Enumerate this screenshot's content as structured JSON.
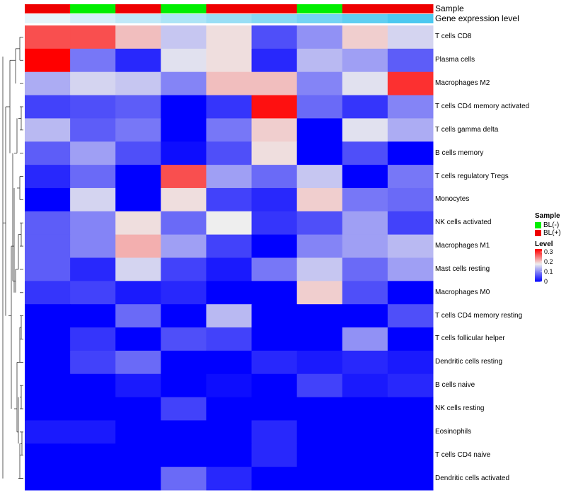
{
  "chart_data": {
    "type": "heatmap",
    "annotations": {
      "sample_title": "Sample",
      "expression_title": "Gene expression level",
      "sample": [
        "BL(+)",
        "BL(-)",
        "BL(+)",
        "BL(-)",
        "BL(+)",
        "BL(+)",
        "BL(-)",
        "BL(+)",
        "BL(+)"
      ],
      "expression_level": [
        0.02,
        0.04,
        0.06,
        0.08,
        0.1,
        0.12,
        0.14,
        0.16,
        0.18
      ]
    },
    "rows": [
      "T cells CD8",
      "Plasma cells",
      "Macrophages M2",
      "T cells CD4 memory activated",
      "T cells gamma delta",
      "B cells memory",
      "T cells regulatory  Tregs",
      "Monocytes",
      "NK cells activated",
      "Macrophages M1",
      "Mast cells resting",
      "Macrophages M0",
      "T cells CD4 memory resting",
      "T cells follicular helper",
      "Dendritic cells resting",
      "B cells naive",
      "NK cells resting",
      "Eosinophils",
      "T cells CD4 naive",
      "Dendritic cells activated"
    ],
    "values": [
      [
        0.28,
        0.28,
        0.21,
        0.15,
        0.19,
        0.06,
        0.11,
        0.2,
        0.16
      ],
      [
        0.33,
        0.09,
        0.03,
        0.17,
        0.19,
        0.03,
        0.14,
        0.12,
        0.07
      ],
      [
        0.13,
        0.16,
        0.15,
        0.1,
        0.21,
        0.21,
        0.1,
        0.17,
        0.3
      ],
      [
        0.05,
        0.06,
        0.07,
        0.0,
        0.04,
        0.32,
        0.08,
        0.04,
        0.1
      ],
      [
        0.14,
        0.07,
        0.09,
        0.0,
        0.09,
        0.2,
        0.0,
        0.17,
        0.13
      ],
      [
        0.07,
        0.12,
        0.06,
        0.01,
        0.06,
        0.19,
        0.0,
        0.06,
        0.0
      ],
      [
        0.03,
        0.08,
        0.0,
        0.28,
        0.12,
        0.08,
        0.15,
        0.0,
        0.09
      ],
      [
        0.0,
        0.16,
        0.0,
        0.19,
        0.05,
        0.03,
        0.2,
        0.09,
        0.08
      ],
      [
        0.07,
        0.1,
        0.19,
        0.08,
        0.18,
        0.04,
        0.06,
        0.12,
        0.05
      ],
      [
        0.07,
        0.1,
        0.22,
        0.12,
        0.05,
        0.0,
        0.1,
        0.12,
        0.14
      ],
      [
        0.07,
        0.03,
        0.16,
        0.05,
        0.02,
        0.09,
        0.15,
        0.08,
        0.12
      ],
      [
        0.04,
        0.05,
        0.02,
        0.03,
        0.0,
        0.0,
        0.2,
        0.06,
        0.0
      ],
      [
        0.0,
        0.0,
        0.08,
        0.0,
        0.14,
        0.0,
        0.0,
        0.0,
        0.06
      ],
      [
        0.0,
        0.04,
        0.0,
        0.06,
        0.05,
        0.0,
        0.0,
        0.11,
        0.0
      ],
      [
        0.0,
        0.05,
        0.08,
        0.0,
        0.0,
        0.03,
        0.02,
        0.03,
        0.02
      ],
      [
        0.0,
        0.0,
        0.02,
        0.0,
        0.01,
        0.0,
        0.05,
        0.02,
        0.03
      ],
      [
        0.0,
        0.0,
        0.0,
        0.05,
        0.0,
        0.0,
        0.0,
        0.0,
        0.0
      ],
      [
        0.02,
        0.02,
        0.0,
        0.0,
        0.0,
        0.03,
        0.0,
        0.0,
        0.0
      ],
      [
        0.0,
        0.0,
        0.0,
        0.0,
        0.0,
        0.03,
        0.0,
        0.0,
        0.0
      ],
      [
        0.0,
        0.0,
        0.0,
        0.08,
        0.03,
        0.0,
        0.0,
        0.0,
        0.0
      ]
    ],
    "color_scale": {
      "low": "#0000FF",
      "mid": "#EEEEEE",
      "high": "#FF0000",
      "min": 0.0,
      "mid_value": 0.18,
      "max": 0.33
    },
    "legends": {
      "sample": {
        "title": "Sample",
        "entries": [
          {
            "label": "BL(-)",
            "color": "#00EE00"
          },
          {
            "label": "BL(+)",
            "color": "#EE0000"
          }
        ]
      },
      "level": {
        "title": "Level",
        "ticks": [
          0.3,
          0.2,
          0.1,
          0
        ]
      }
    },
    "expression_colors": {
      "low": "#E6F4FA",
      "high": "#4CC8F0"
    }
  }
}
